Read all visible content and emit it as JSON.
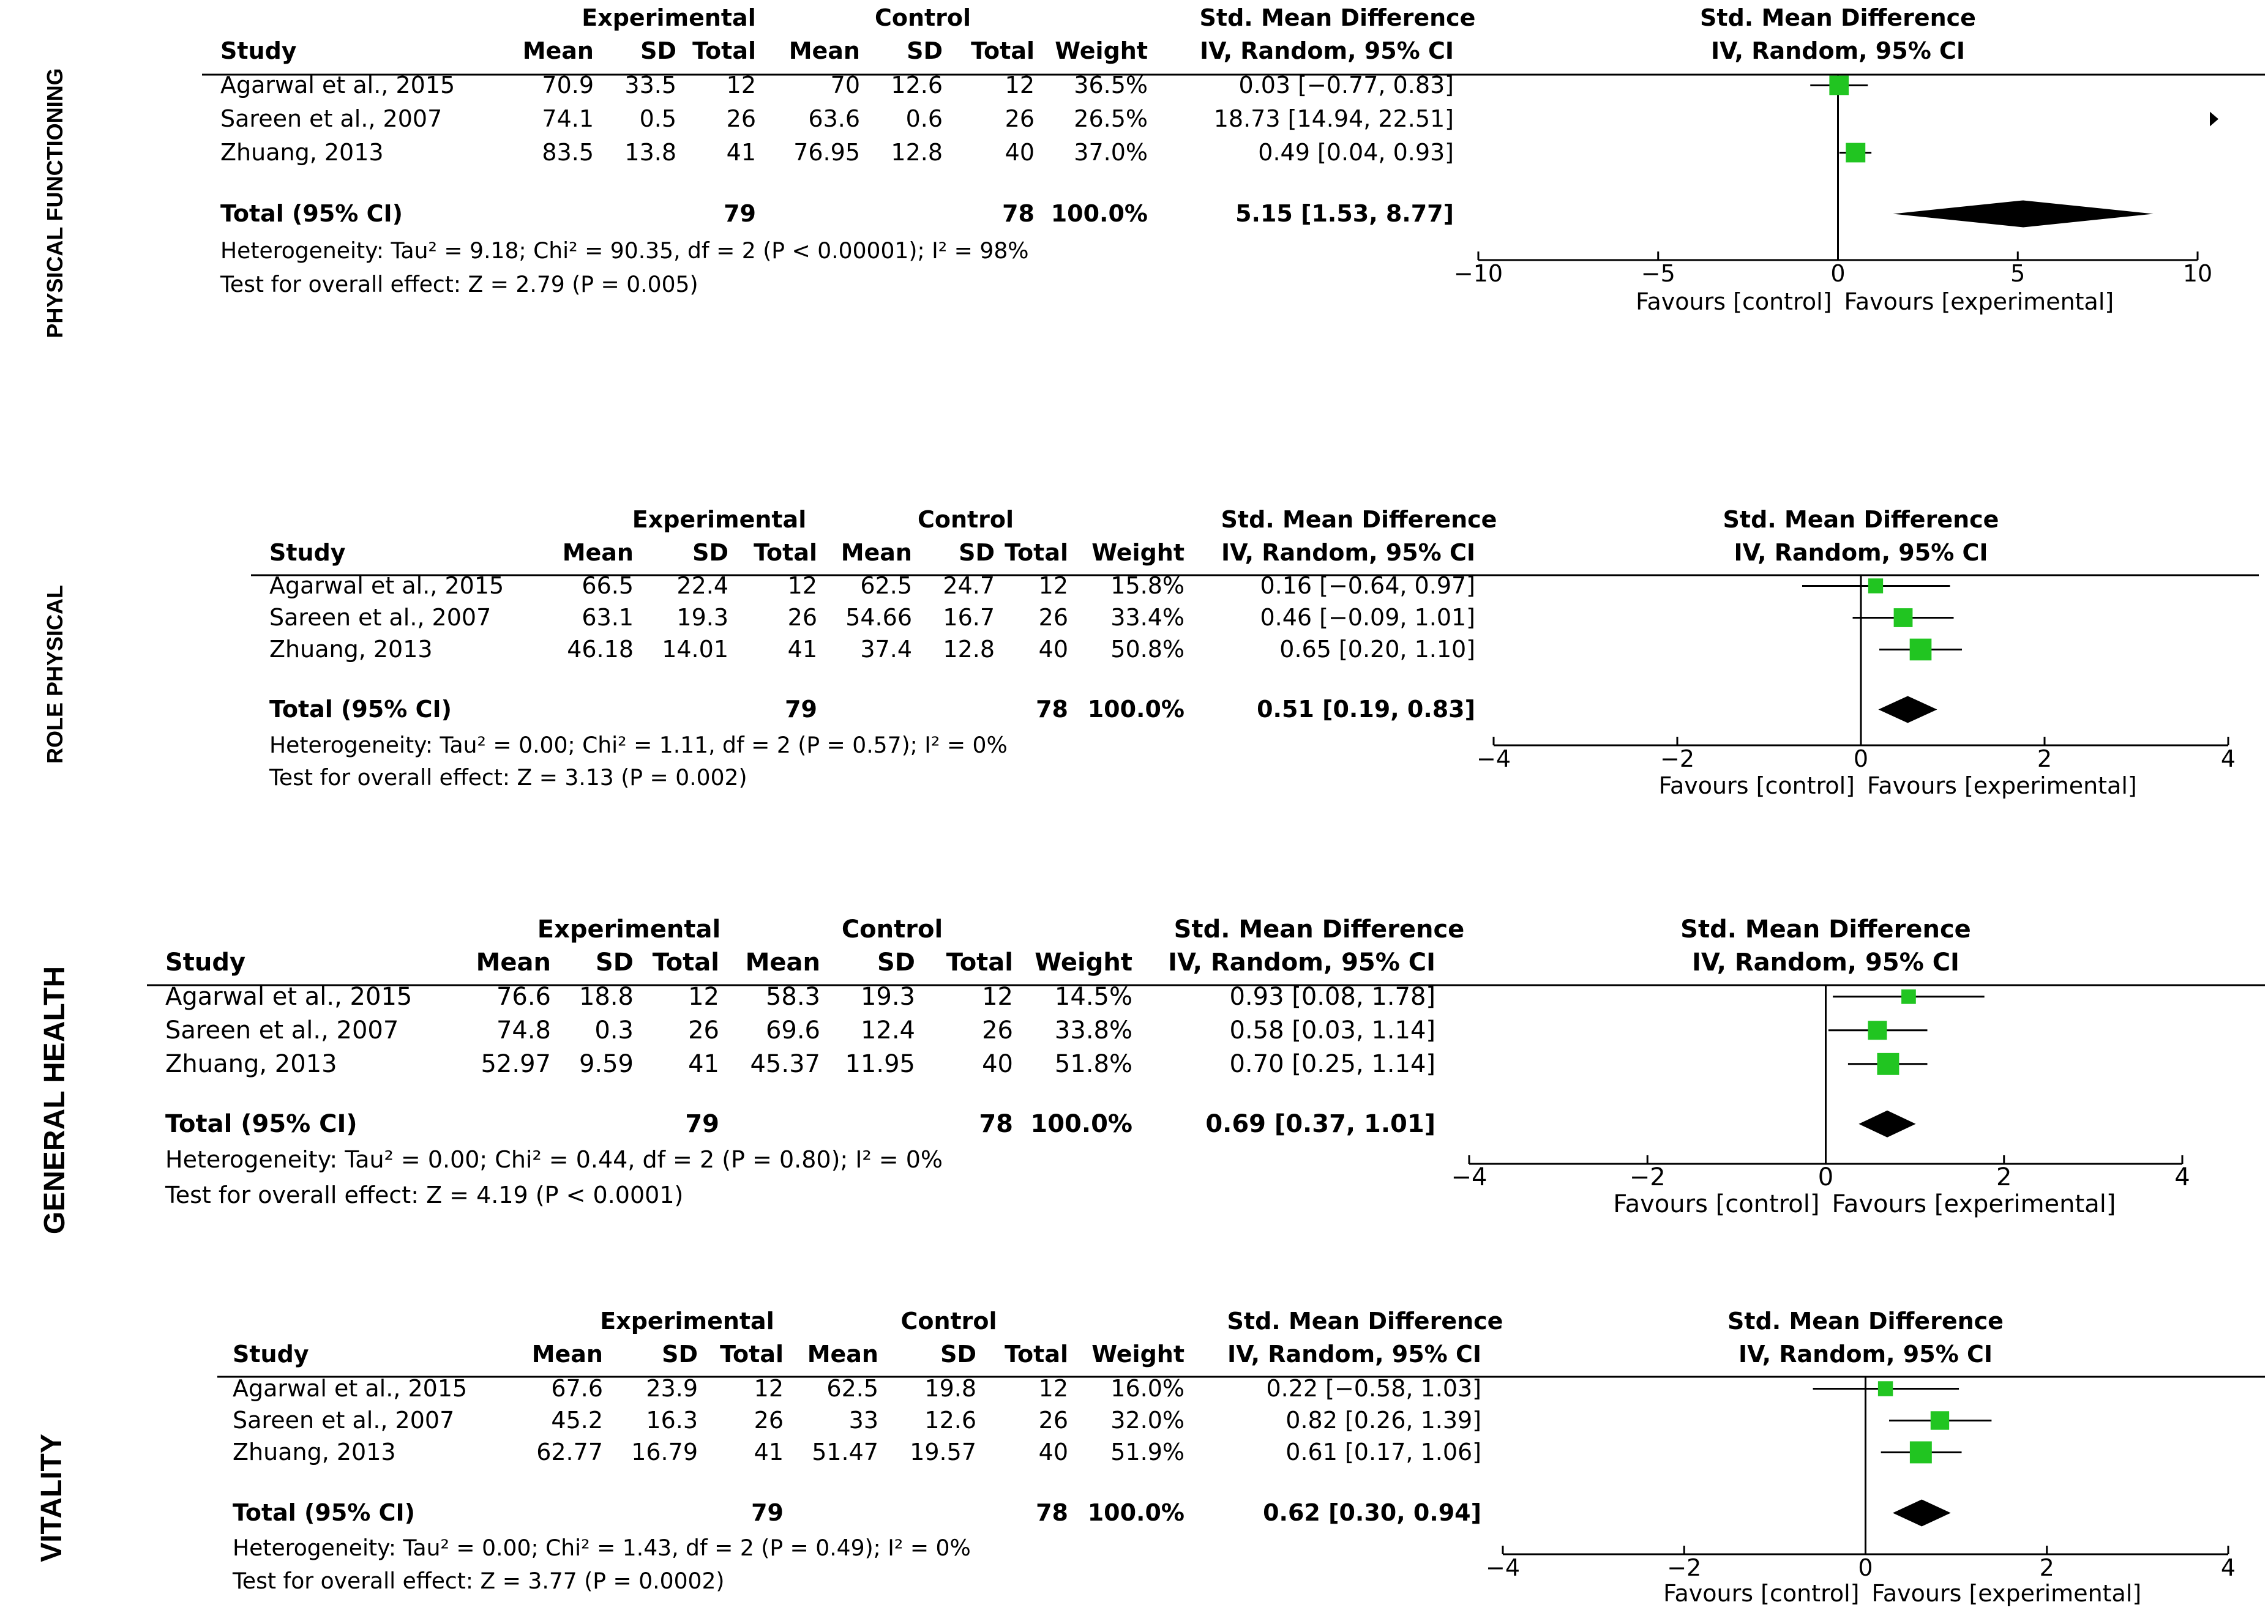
{
  "chart_data": [
    {
      "type": "forest",
      "side_label": "PHYSICAL FUNCTIONING",
      "headers": {
        "exp_group": "Experimental",
        "ctl_group": "Control",
        "effect_group": "Std. Mean Difference",
        "study": "Study",
        "mean": "Mean",
        "sd": "SD",
        "total": "Total",
        "weight": "Weight",
        "effect_method": "IV, Random, 95% CI",
        "plot_title": "Std. Mean Difference",
        "plot_method": "IV, Random, 95% CI"
      },
      "studies": [
        {
          "name": "Agarwal et al., 2015",
          "exp_mean": "70.9",
          "exp_sd": "33.5",
          "exp_total": "12",
          "ctl_mean": "70",
          "ctl_sd": "12.6",
          "ctl_total": "12",
          "weight": "36.5%",
          "ci_text": "0.03 [−0.77, 0.83]",
          "est": 0.03,
          "lo": -0.77,
          "hi": 0.83,
          "w": 36.5
        },
        {
          "name": "Sareen et al., 2007",
          "exp_mean": "74.1",
          "exp_sd": "0.5",
          "exp_total": "26",
          "ctl_mean": "63.6",
          "ctl_sd": "0.6",
          "ctl_total": "26",
          "weight": "26.5%",
          "ci_text": "18.73 [14.94, 22.51]",
          "est": 18.73,
          "lo": 14.94,
          "hi": 22.51,
          "w": 26.5
        },
        {
          "name": "Zhuang, 2013",
          "exp_mean": "83.5",
          "exp_sd": "13.8",
          "exp_total": "41",
          "ctl_mean": "76.95",
          "ctl_sd": "12.8",
          "ctl_total": "40",
          "weight": "37.0%",
          "ci_text": "0.49 [0.04, 0.93]",
          "est": 0.49,
          "lo": 0.04,
          "hi": 0.93,
          "w": 37.0
        }
      ],
      "total": {
        "label": "Total (95% CI)",
        "exp_total": "79",
        "ctl_total": "78",
        "weight": "100.0%",
        "ci_text": "5.15 [1.53, 8.77]",
        "est": 5.15,
        "lo": 1.53,
        "hi": 8.77
      },
      "heterogeneity": "Heterogeneity: Tau² = 9.18; Chi² = 90.35, df = 2 (P < 0.00001); I² = 98%",
      "overall_effect": "Test for overall effect: Z = 2.79 (P = 0.005)",
      "axis": {
        "min": -10,
        "max": 10,
        "ticks": [
          -10,
          -5,
          0,
          5,
          10
        ],
        "tick_labels": [
          "−10",
          "−5",
          "0",
          "5",
          "10"
        ]
      },
      "favours_left": "Favours [control]",
      "favours_right": "Favours [experimental]"
    },
    {
      "type": "forest",
      "side_label": "ROLE PHYSICAL",
      "headers": {
        "exp_group": "Experimental",
        "ctl_group": "Control",
        "effect_group": "Std. Mean Difference",
        "study": "Study",
        "mean": "Mean",
        "sd": "SD",
        "total": "Total",
        "weight": "Weight",
        "effect_method": "IV, Random, 95% CI",
        "plot_title": "Std. Mean Difference",
        "plot_method": "IV, Random, 95% CI"
      },
      "studies": [
        {
          "name": "Agarwal et al., 2015",
          "exp_mean": "66.5",
          "exp_sd": "22.4",
          "exp_total": "12",
          "ctl_mean": "62.5",
          "ctl_sd": "24.7",
          "ctl_total": "12",
          "weight": "15.8%",
          "ci_text": "0.16 [−0.64, 0.97]",
          "est": 0.16,
          "lo": -0.64,
          "hi": 0.97,
          "w": 15.8
        },
        {
          "name": "Sareen et al., 2007",
          "exp_mean": "63.1",
          "exp_sd": "19.3",
          "exp_total": "26",
          "ctl_mean": "54.66",
          "ctl_sd": "16.7",
          "ctl_total": "26",
          "weight": "33.4%",
          "ci_text": "0.46 [−0.09, 1.01]",
          "est": 0.46,
          "lo": -0.09,
          "hi": 1.01,
          "w": 33.4
        },
        {
          "name": "Zhuang, 2013",
          "exp_mean": "46.18",
          "exp_sd": "14.01",
          "exp_total": "41",
          "ctl_mean": "37.4",
          "ctl_sd": "12.8",
          "ctl_total": "40",
          "weight": "50.8%",
          "ci_text": "0.65 [0.20, 1.10]",
          "est": 0.65,
          "lo": 0.2,
          "hi": 1.1,
          "w": 50.8
        }
      ],
      "total": {
        "label": "Total (95% CI)",
        "exp_total": "79",
        "ctl_total": "78",
        "weight": "100.0%",
        "ci_text": "0.51 [0.19, 0.83]",
        "est": 0.51,
        "lo": 0.19,
        "hi": 0.83
      },
      "heterogeneity": "Heterogeneity: Tau² = 0.00; Chi² = 1.11, df = 2 (P = 0.57); I² = 0%",
      "overall_effect": "Test for overall effect: Z = 3.13 (P = 0.002)",
      "axis": {
        "min": -4,
        "max": 4,
        "ticks": [
          -4,
          -2,
          0,
          2,
          4
        ],
        "tick_labels": [
          "−4",
          "−2",
          "0",
          "2",
          "4"
        ]
      },
      "favours_left": "Favours [control]",
      "favours_right": "Favours [experimental]"
    },
    {
      "type": "forest",
      "side_label": "GENERAL HEALTH",
      "headers": {
        "exp_group": "Experimental",
        "ctl_group": "Control",
        "effect_group": "Std. Mean Difference",
        "study": "Study",
        "mean": "Mean",
        "sd": "SD",
        "total": "Total",
        "weight": "Weight",
        "effect_method": "IV, Random, 95% CI",
        "plot_title": "Std. Mean Difference",
        "plot_method": "IV, Random, 95% CI"
      },
      "studies": [
        {
          "name": "Agarwal et al., 2015",
          "exp_mean": "76.6",
          "exp_sd": "18.8",
          "exp_total": "12",
          "ctl_mean": "58.3",
          "ctl_sd": "19.3",
          "ctl_total": "12",
          "weight": "14.5%",
          "ci_text": "0.93 [0.08, 1.78]",
          "est": 0.93,
          "lo": 0.08,
          "hi": 1.78,
          "w": 14.5
        },
        {
          "name": "Sareen et al., 2007",
          "exp_mean": "74.8",
          "exp_sd": "0.3",
          "exp_total": "26",
          "ctl_mean": "69.6",
          "ctl_sd": "12.4",
          "ctl_total": "26",
          "weight": "33.8%",
          "ci_text": "0.58 [0.03, 1.14]",
          "est": 0.58,
          "lo": 0.03,
          "hi": 1.14,
          "w": 33.8
        },
        {
          "name": "Zhuang, 2013",
          "exp_mean": "52.97",
          "exp_sd": "9.59",
          "exp_total": "41",
          "ctl_mean": "45.37",
          "ctl_sd": "11.95",
          "ctl_total": "40",
          "weight": "51.8%",
          "ci_text": "0.70 [0.25, 1.14]",
          "est": 0.7,
          "lo": 0.25,
          "hi": 1.14,
          "w": 51.8
        }
      ],
      "total": {
        "label": "Total (95% CI)",
        "exp_total": "79",
        "ctl_total": "78",
        "weight": "100.0%",
        "ci_text": "0.69 [0.37, 1.01]",
        "est": 0.69,
        "lo": 0.37,
        "hi": 1.01
      },
      "heterogeneity": "Heterogeneity: Tau² = 0.00; Chi² = 0.44, df = 2 (P = 0.80); I² = 0%",
      "overall_effect": "Test for overall effect: Z = 4.19 (P < 0.0001)",
      "axis": {
        "min": -4,
        "max": 4,
        "ticks": [
          -4,
          -2,
          0,
          2,
          4
        ],
        "tick_labels": [
          "−4",
          "−2",
          "0",
          "2",
          "4"
        ]
      },
      "favours_left": "Favours [control]",
      "favours_right": "Favours [experimental]"
    },
    {
      "type": "forest",
      "side_label": "VITALITY",
      "headers": {
        "exp_group": "Experimental",
        "ctl_group": "Control",
        "effect_group": "Std. Mean Difference",
        "study": "Study",
        "mean": "Mean",
        "sd": "SD",
        "total": "Total",
        "weight": "Weight",
        "effect_method": "IV, Random, 95% CI",
        "plot_title": "Std. Mean Difference",
        "plot_method": "IV, Random, 95% CI"
      },
      "studies": [
        {
          "name": "Agarwal et al., 2015",
          "exp_mean": "67.6",
          "exp_sd": "23.9",
          "exp_total": "12",
          "ctl_mean": "62.5",
          "ctl_sd": "19.8",
          "ctl_total": "12",
          "weight": "16.0%",
          "ci_text": "0.22 [−0.58, 1.03]",
          "est": 0.22,
          "lo": -0.58,
          "hi": 1.03,
          "w": 16.0
        },
        {
          "name": "Sareen et al., 2007",
          "exp_mean": "45.2",
          "exp_sd": "16.3",
          "exp_total": "26",
          "ctl_mean": "33",
          "ctl_sd": "12.6",
          "ctl_total": "26",
          "weight": "32.0%",
          "ci_text": "0.82 [0.26, 1.39]",
          "est": 0.82,
          "lo": 0.26,
          "hi": 1.39,
          "w": 32.0
        },
        {
          "name": "Zhuang, 2013",
          "exp_mean": "62.77",
          "exp_sd": "16.79",
          "exp_total": "41",
          "ctl_mean": "51.47",
          "ctl_sd": "19.57",
          "ctl_total": "40",
          "weight": "51.9%",
          "ci_text": "0.61 [0.17, 1.06]",
          "est": 0.61,
          "lo": 0.17,
          "hi": 1.06,
          "w": 51.9
        }
      ],
      "total": {
        "label": "Total (95% CI)",
        "exp_total": "79",
        "ctl_total": "78",
        "weight": "100.0%",
        "ci_text": "0.62 [0.30, 0.94]",
        "est": 0.62,
        "lo": 0.3,
        "hi": 0.94
      },
      "heterogeneity": "Heterogeneity: Tau² = 0.00; Chi² = 1.43, df = 2 (P = 0.49); I² = 0%",
      "overall_effect": "Test for overall effect: Z = 3.77 (P = 0.0002)",
      "axis": {
        "min": -4,
        "max": 4,
        "ticks": [
          -4,
          -2,
          0,
          2,
          4
        ],
        "tick_labels": [
          "−4",
          "−2",
          "0",
          "2",
          "4"
        ]
      },
      "favours_left": "Favours [control]",
      "favours_right": "Favours [experimental]"
    }
  ],
  "colors": {
    "study_marker": "#21c521",
    "diamond": "#000000",
    "lines": "#000000",
    "text": "#000000"
  }
}
